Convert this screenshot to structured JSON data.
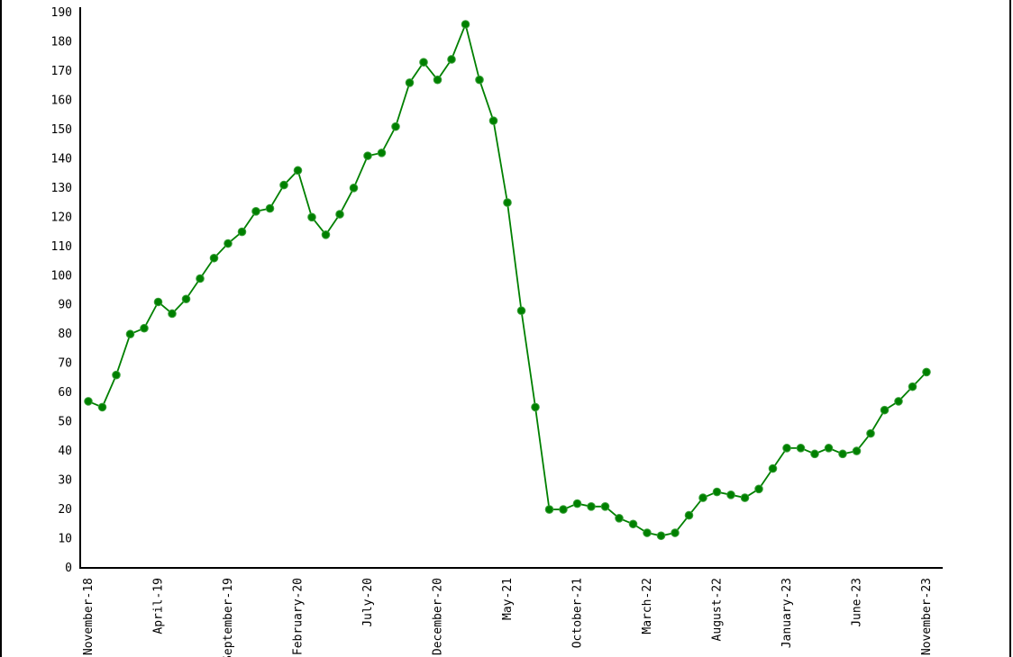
{
  "frame": {
    "background": "#ffffff",
    "axis_color": "#000000",
    "window_border_color": "#000000"
  },
  "chart_data": {
    "type": "line",
    "title": "",
    "xlabel": "",
    "ylabel": "",
    "ylim": [
      0,
      190
    ],
    "grid": false,
    "legend": false,
    "marker": "circle",
    "line_color": "#008000",
    "marker_color": "#008000",
    "marker_edge_color": "#3aa03a",
    "y_ticks": [
      0,
      10,
      20,
      30,
      40,
      50,
      60,
      70,
      80,
      90,
      100,
      110,
      120,
      130,
      140,
      150,
      160,
      170,
      180,
      190
    ],
    "x_tick_every": 5,
    "x_tick_labels": [
      "November-18",
      "April-19",
      "September-19",
      "February-20",
      "July-20",
      "December-20",
      "May-21",
      "October-21",
      "March-22",
      "August-22",
      "January-23",
      "June-23",
      "November-23"
    ],
    "x": [
      "November-18",
      "December-18",
      "January-19",
      "February-19",
      "March-19",
      "April-19",
      "May-19",
      "June-19",
      "July-19",
      "August-19",
      "September-19",
      "October-19",
      "November-19",
      "December-19",
      "January-20",
      "February-20",
      "March-20",
      "April-20",
      "May-20",
      "June-20",
      "July-20",
      "August-20",
      "September-20",
      "October-20",
      "November-20",
      "December-20",
      "January-21",
      "February-21",
      "March-21",
      "April-21",
      "May-21",
      "June-21",
      "July-21",
      "August-21",
      "September-21",
      "October-21",
      "November-21",
      "December-21",
      "January-22",
      "February-22",
      "March-22",
      "April-22",
      "May-22",
      "June-22",
      "July-22",
      "August-22",
      "September-22",
      "October-22",
      "November-22",
      "December-22",
      "January-23",
      "February-23",
      "March-23",
      "April-23",
      "May-23",
      "June-23",
      "July-23",
      "August-23",
      "September-23",
      "October-23",
      "November-23"
    ],
    "series": [
      {
        "name": "value",
        "values": [
          57,
          55,
          66,
          80,
          82,
          91,
          87,
          92,
          99,
          106,
          111,
          115,
          122,
          123,
          131,
          136,
          120,
          114,
          121,
          130,
          141,
          142,
          151,
          166,
          173,
          167,
          174,
          186,
          167,
          153,
          125,
          88,
          55,
          20,
          20,
          22,
          21,
          21,
          17,
          15,
          12,
          11,
          12,
          18,
          24,
          26,
          25,
          24,
          27,
          34,
          41,
          41,
          39,
          41,
          39,
          40,
          46,
          54,
          57,
          62,
          67
        ]
      }
    ]
  }
}
